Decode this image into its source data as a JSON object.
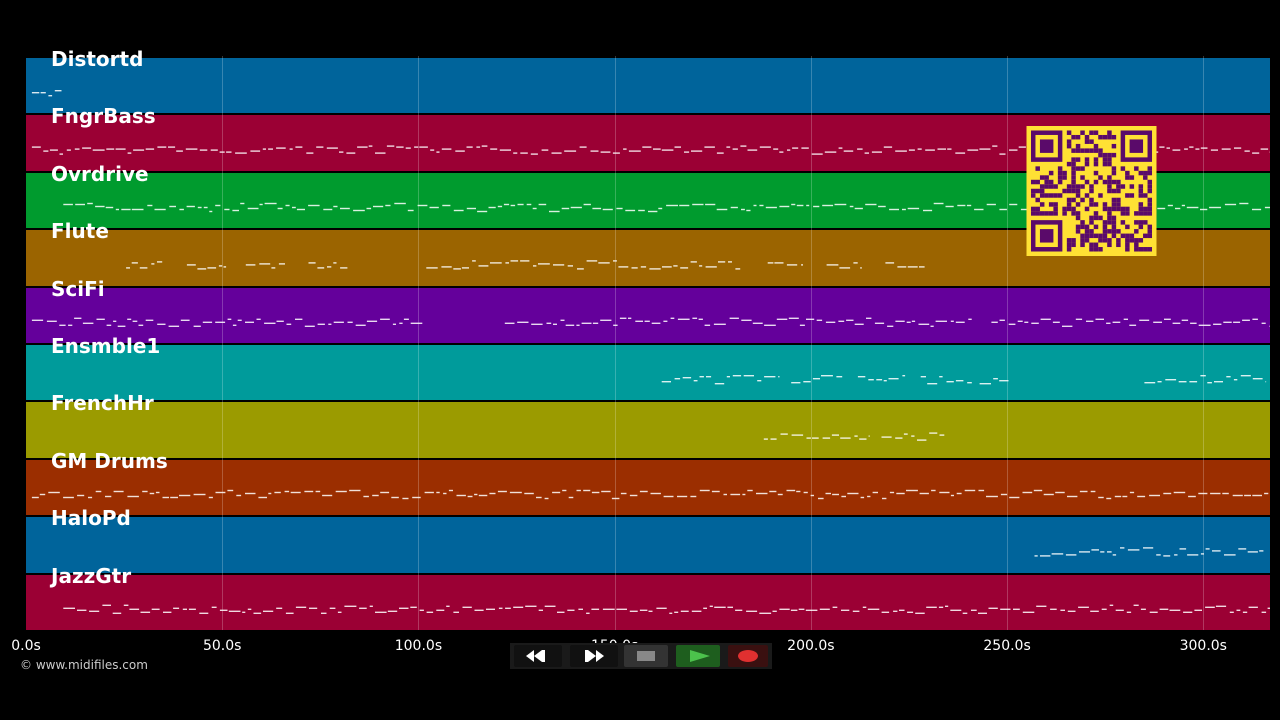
{
  "tracks": [
    {
      "name": "Distortd",
      "color": "#00649b"
    },
    {
      "name": "FngrBass",
      "color": "#9b0034"
    },
    {
      "name": "Ovrdrive",
      "color": "#009b2e"
    },
    {
      "name": "Flute",
      "color": "#9b6400"
    },
    {
      "name": "SciFi",
      "color": "#64009b"
    },
    {
      "name": "Ensmble1",
      "color": "#009b9b"
    },
    {
      "name": "FrenchHr",
      "color": "#9b9b00"
    },
    {
      "name": "GM Drums",
      "color": "#9b2e00"
    },
    {
      "name": "HaloPd",
      "color": "#00649b"
    },
    {
      "name": "JazzGtr",
      "color": "#9b0034"
    }
  ],
  "timeline": {
    "max_seconds": 317,
    "ticks": [
      "0.0s",
      "50.0s",
      "100.0s",
      "150.0s",
      "200.0s",
      "250.0s",
      "300.0s"
    ],
    "tick_values": [
      0,
      50,
      100,
      150,
      200,
      250,
      300
    ]
  },
  "note_activity_seconds": [
    [
      [
        1.5,
        9.5
      ]
    ],
    [
      [
        1.5,
        317
      ]
    ],
    [
      [
        9.5,
        317
      ]
    ],
    [
      [
        25.5,
        35
      ],
      [
        41,
        51
      ],
      [
        56,
        66
      ],
      [
        72,
        82
      ],
      [
        102,
        182
      ],
      [
        189,
        198
      ],
      [
        204,
        213
      ],
      [
        219,
        229
      ]
    ],
    [
      [
        1.5,
        101
      ],
      [
        122,
        241
      ],
      [
        246,
        317
      ]
    ],
    [
      [
        162,
        192
      ],
      [
        195,
        208
      ],
      [
        212,
        224
      ],
      [
        228,
        241
      ],
      [
        243,
        251
      ],
      [
        285,
        316
      ]
    ],
    [
      [
        188,
        202
      ],
      [
        203,
        215
      ],
      [
        218,
        234
      ]
    ],
    [
      [
        1.5,
        317
      ]
    ],
    [
      [
        257,
        316
      ]
    ],
    [
      [
        9.5,
        317
      ]
    ]
  ],
  "note_color": "#ffffff",
  "copyright": "© www.midifiles.com",
  "transport": {
    "rewind_icon": "rewind-icon",
    "fast_forward_icon": "fast-forward-icon",
    "stop_icon": "stop-icon",
    "play_icon": "play-icon",
    "record_icon": "record-icon"
  },
  "qr_code": {
    "color": "#ffe134",
    "dark_color": "#5a0a6a"
  }
}
